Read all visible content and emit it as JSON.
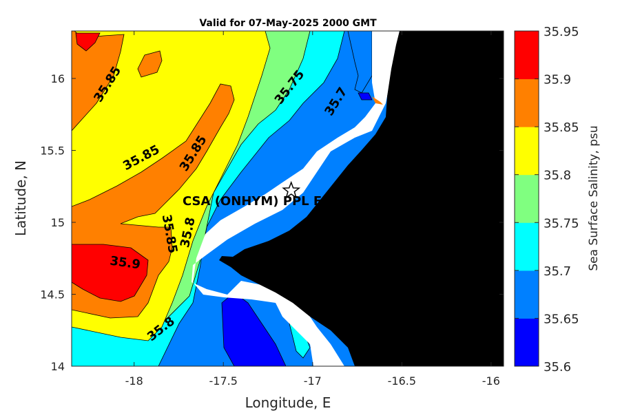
{
  "title": "Valid for 07-May-2025 2000 GMT",
  "map": {
    "xlabel": "Longitude, E",
    "ylabel": "Latitude, N",
    "x_range": [
      -18.35,
      -15.93
    ],
    "y_range": [
      14.0,
      16.33
    ],
    "x_ticks": [
      -18,
      -17.5,
      -17,
      -16.5,
      -16
    ],
    "x_tick_labels": [
      "-18",
      "-17.5",
      "-17",
      "-16.5",
      "-16"
    ],
    "y_ticks": [
      14,
      14.5,
      15,
      15.5,
      16
    ],
    "y_tick_labels": [
      "14",
      "14.5",
      "15",
      "15.5",
      "16"
    ],
    "land_color": "#000000",
    "mask_color": "#ffffff",
    "station": {
      "name": "CSA (ONHYM) PPL EP",
      "lon": -17.12,
      "lat": 15.22,
      "marker": "star-icon"
    },
    "contour_labels": [
      {
        "text": "35.85",
        "lon": -18.15,
        "lat": 15.96,
        "angle": -58
      },
      {
        "text": "35.85",
        "lon": -17.96,
        "lat": 15.45,
        "angle": -28
      },
      {
        "text": "35.85",
        "lon": -17.67,
        "lat": 15.48,
        "angle": -58
      },
      {
        "text": "35.75",
        "lon": -17.13,
        "lat": 15.94,
        "angle": -52
      },
      {
        "text": "35.7",
        "lon": -16.87,
        "lat": 15.84,
        "angle": -58
      },
      {
        "text": "35.8",
        "lon": -17.7,
        "lat": 14.93,
        "angle": -78
      },
      {
        "text": "35.85",
        "lon": -17.8,
        "lat": 14.92,
        "angle": 80
      },
      {
        "text": "35.9",
        "lon": -18.05,
        "lat": 14.72,
        "angle": 8
      },
      {
        "text": "35.8",
        "lon": -17.85,
        "lat": 14.26,
        "angle": -38
      }
    ]
  },
  "colorbar": {
    "title": "Sea Surface Salinity, psu",
    "levels": [
      35.6,
      35.65,
      35.7,
      35.75,
      35.8,
      35.85,
      35.9,
      35.95
    ],
    "colors": [
      "#0000ff",
      "#0080ff",
      "#00ffff",
      "#80ff80",
      "#ffff00",
      "#ff8000",
      "#ff0000"
    ],
    "tick_labels": [
      "35.6",
      "35.65",
      "35.7",
      "35.75",
      "35.8",
      "35.85",
      "35.9",
      "35.95"
    ]
  }
}
